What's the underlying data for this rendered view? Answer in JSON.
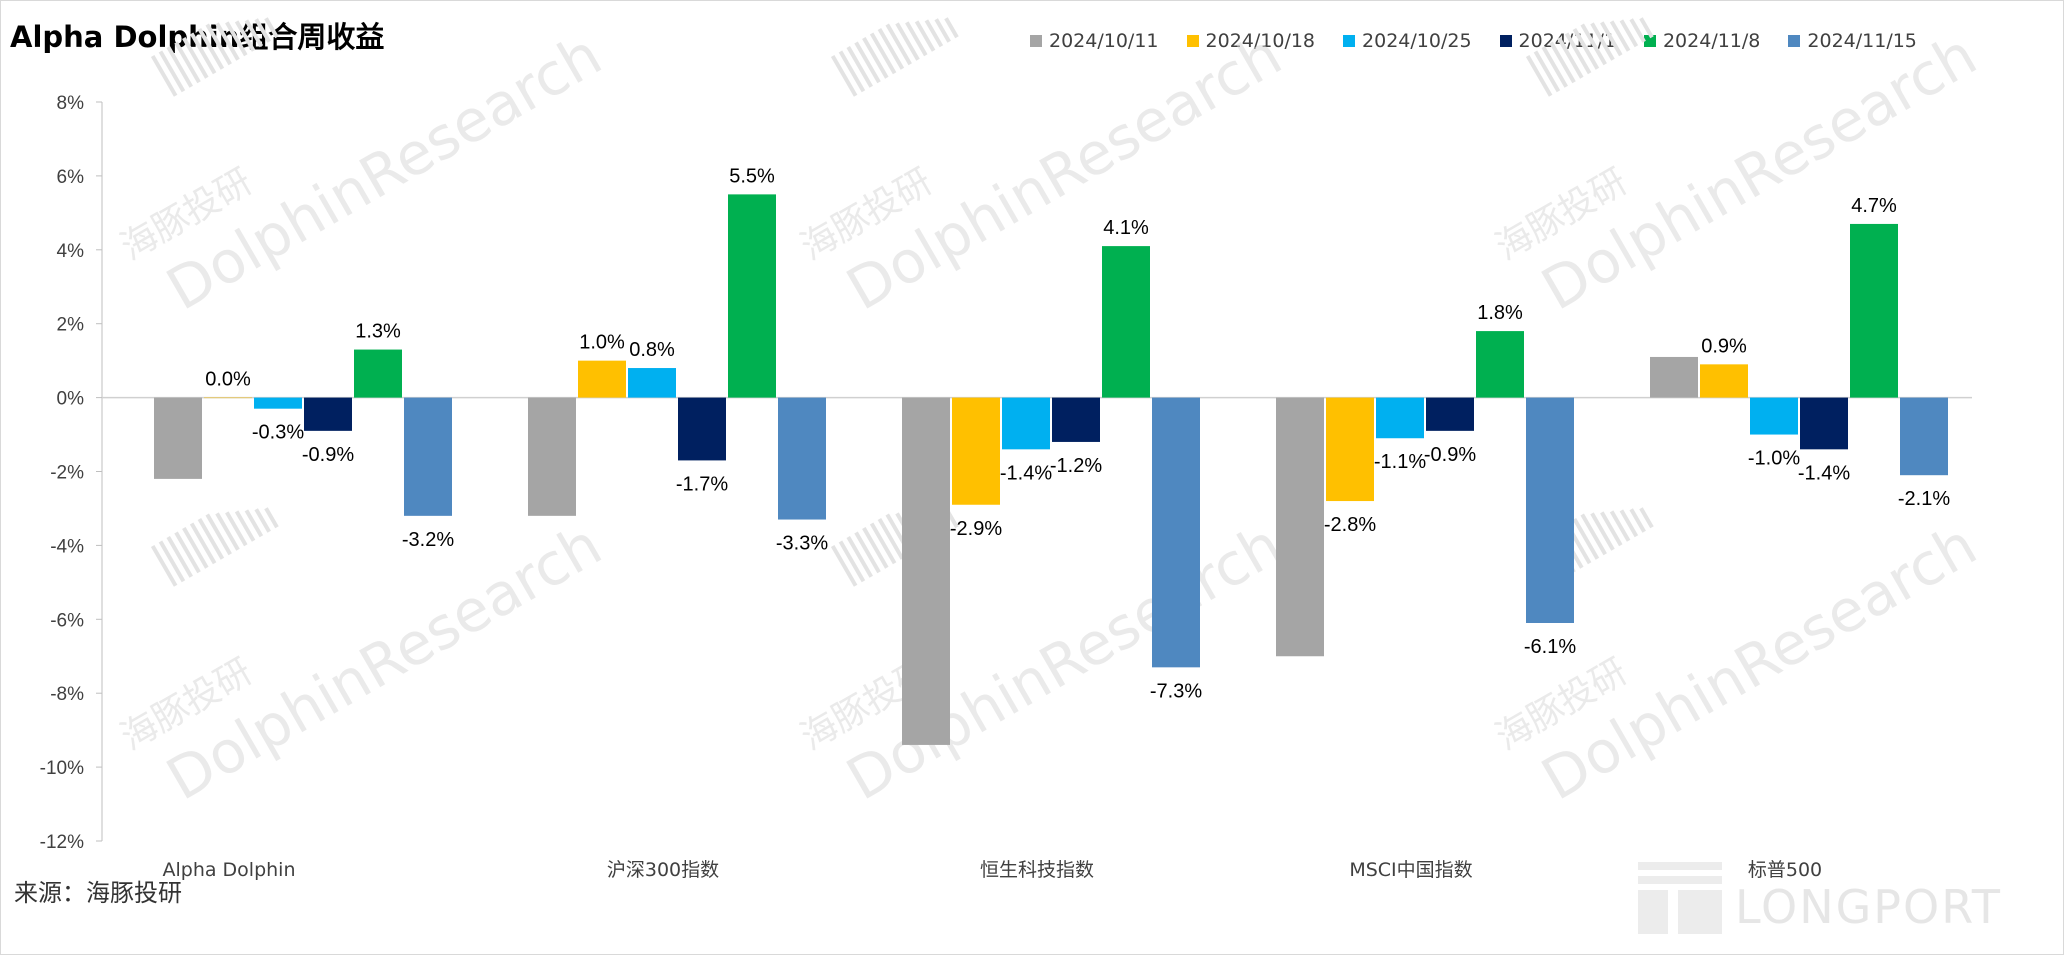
{
  "title": "Alpha Dolphin组合周收益",
  "source": "来源：海豚投研",
  "watermark": {
    "cn": "海豚投研",
    "en": "DolphinResearch",
    "logo": "LONGPORT"
  },
  "chart_data": {
    "type": "bar",
    "title": "Alpha Dolphin组合周收益",
    "categories": [
      "Alpha Dolphin",
      "沪深300指数",
      "恒生科技指数",
      "MSCI中国指数",
      "标普500"
    ],
    "ylim": [
      -12,
      8
    ],
    "yticks": [
      8,
      6,
      4,
      2,
      0,
      -2,
      -4,
      -6,
      -8,
      -10,
      -12
    ],
    "ytick_labels": [
      "8%",
      "6%",
      "4%",
      "2%",
      "0%",
      "-2%",
      "-4%",
      "-6%",
      "-8%",
      "-10%",
      "-12%"
    ],
    "legend_position": "top-right",
    "grid": false,
    "series": [
      {
        "name": "2024/10/11",
        "color": "#a5a5a5",
        "values": [
          -2.2,
          -3.2,
          -9.4,
          -7.0,
          1.1
        ],
        "labels": [
          "",
          "",
          "",
          "",
          ""
        ]
      },
      {
        "name": "2024/10/18",
        "color": "#ffc000",
        "values": [
          0.0,
          1.0,
          -2.9,
          -2.8,
          0.9
        ],
        "labels": [
          "0.0%",
          "1.0%",
          "-2.9%",
          "-2.8%",
          "0.9%"
        ]
      },
      {
        "name": "2024/10/25",
        "color": "#00b0f0",
        "values": [
          -0.3,
          0.8,
          -1.4,
          -1.1,
          -1.0
        ],
        "labels": [
          "-0.3%",
          "0.8%",
          "-1.4%",
          "-1.1%",
          "-1.0%"
        ]
      },
      {
        "name": "2024/11/1",
        "color": "#002060",
        "values": [
          -0.9,
          -1.7,
          -1.2,
          -0.9,
          -1.4
        ],
        "labels": [
          "-0.9%",
          "-1.7%",
          "-1.2%",
          "-0.9%",
          "-1.4%"
        ]
      },
      {
        "name": "2024/11/8",
        "color": "#00b050",
        "values": [
          1.3,
          5.5,
          4.1,
          1.8,
          4.7
        ],
        "labels": [
          "1.3%",
          "5.5%",
          "4.1%",
          "1.8%",
          "4.7%"
        ]
      },
      {
        "name": "2024/11/15",
        "color": "#4f88c0",
        "values": [
          -3.2,
          -3.3,
          -7.3,
          -6.1,
          -2.1
        ],
        "labels": [
          "-3.2%",
          "-3.3%",
          "-7.3%",
          "-6.1%",
          "-2.1%"
        ]
      }
    ]
  }
}
